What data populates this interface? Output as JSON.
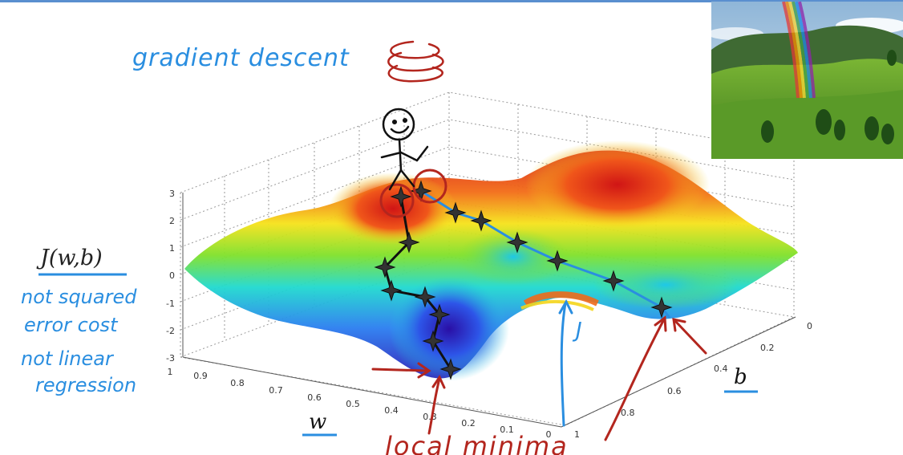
{
  "title": "gradient descent",
  "cost_label": "J(w,b)",
  "notes": [
    "not squared",
    "error cost",
    "not linear",
    "regression"
  ],
  "axes": {
    "w_label": "w",
    "b_label": "b",
    "j_label": "J",
    "z_ticks": [
      "3",
      "2",
      "1",
      "0",
      "-1",
      "-2",
      "-3"
    ],
    "w_ticks": [
      "1",
      "0.9",
      "0.8",
      "0.7",
      "0.6",
      "0.5",
      "0.4",
      "0.3",
      "0.2",
      "0.1",
      "0"
    ],
    "b_ticks": [
      "0",
      "0.2",
      "0.4",
      "0.6",
      "0.8",
      "1"
    ]
  },
  "annotation": "local minima",
  "colors": {
    "blue_ink": "#2a8ee0",
    "red_ink": "#b3261e",
    "path_ink": "#111111"
  },
  "icons": {
    "figure": "stick-figure-icon",
    "photo": "landscape-photo"
  }
}
